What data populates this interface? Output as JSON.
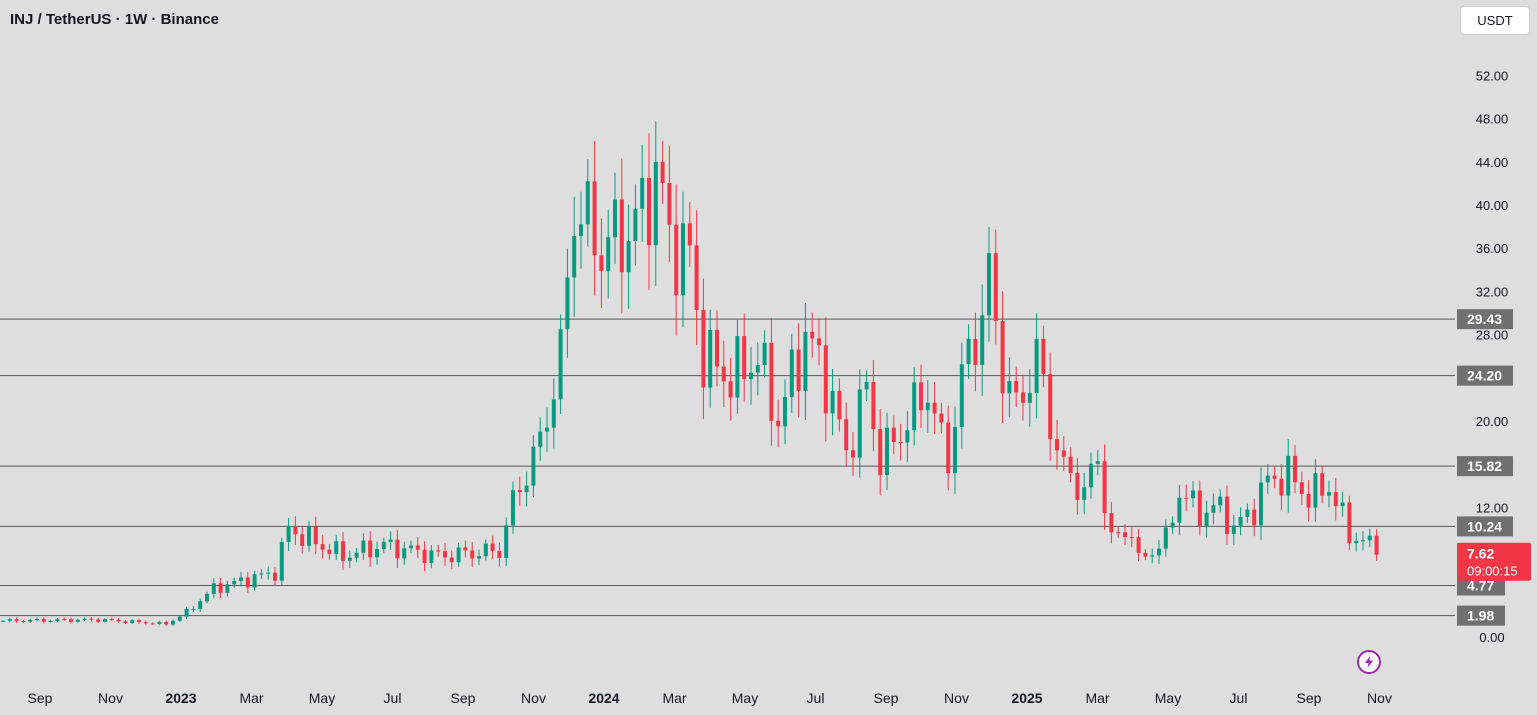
{
  "header": {
    "title": "INJ / TetherUS · 1W · Binance",
    "currency": "USDT"
  },
  "colors": {
    "background": "#dedede",
    "up": "#089981",
    "down": "#f23645",
    "level_label_bg": "#707070",
    "last_price_bg": "#f23645",
    "text": "#131722"
  },
  "icons": {
    "lightning": "lightning-bolt-icon"
  },
  "chart_data": {
    "type": "candlestick",
    "title": "INJ / TetherUS · 1W · Binance",
    "ylim": [
      0,
      54
    ],
    "y_ticks": [
      "52.00",
      "48.00",
      "44.00",
      "40.00",
      "36.00",
      "32.00",
      "28.00",
      "20.00",
      "12.00",
      "0.00"
    ],
    "x_ticks": [
      {
        "label": "Sep",
        "bold": false
      },
      {
        "label": "Nov",
        "bold": false
      },
      {
        "label": "2023",
        "bold": true
      },
      {
        "label": "Mar",
        "bold": false
      },
      {
        "label": "May",
        "bold": false
      },
      {
        "label": "Jul",
        "bold": false
      },
      {
        "label": "Sep",
        "bold": false
      },
      {
        "label": "Nov",
        "bold": false
      },
      {
        "label": "2024",
        "bold": true
      },
      {
        "label": "Mar",
        "bold": false
      },
      {
        "label": "May",
        "bold": false
      },
      {
        "label": "Jul",
        "bold": false
      },
      {
        "label": "Sep",
        "bold": false
      },
      {
        "label": "Nov",
        "bold": false
      },
      {
        "label": "2025",
        "bold": true
      },
      {
        "label": "Mar",
        "bold": false
      },
      {
        "label": "May",
        "bold": false
      },
      {
        "label": "Jul",
        "bold": false
      },
      {
        "label": "Sep",
        "bold": false
      },
      {
        "label": "Nov",
        "bold": false
      }
    ],
    "horizontal_levels": [
      "29.43",
      "24.20",
      "15.82",
      "10.24",
      "4.77",
      "1.98"
    ],
    "last_price": {
      "price": "7.62",
      "countdown": "09:00:15"
    },
    "key_points": [
      [
        0,
        1.5
      ],
      [
        14,
        1.6
      ],
      [
        24,
        1.2
      ],
      [
        27,
        2.3
      ],
      [
        31,
        4.5
      ],
      [
        40,
        6.0
      ],
      [
        42,
        10.0
      ],
      [
        50,
        7.5
      ],
      [
        56,
        8.5
      ],
      [
        64,
        7.5
      ],
      [
        73,
        8.0
      ],
      [
        75,
        12.5
      ],
      [
        79,
        18.0
      ],
      [
        82,
        26.0
      ],
      [
        84,
        40.0
      ],
      [
        88,
        36.0
      ],
      [
        93,
        38.0
      ],
      [
        96,
        43.0
      ],
      [
        98,
        37.0
      ],
      [
        101,
        35.0
      ],
      [
        103,
        26.0
      ],
      [
        107,
        24.0
      ],
      [
        111,
        26.0
      ],
      [
        114,
        20.0
      ],
      [
        118,
        28.0
      ],
      [
        121,
        24.0
      ],
      [
        124,
        17.0
      ],
      [
        127,
        23.0
      ],
      [
        129,
        16.5
      ],
      [
        132,
        19.0
      ],
      [
        136,
        23.0
      ],
      [
        138,
        18.0
      ],
      [
        139,
        16.5
      ],
      [
        141,
        24.0
      ],
      [
        144,
        30.0
      ],
      [
        145,
        33.0
      ],
      [
        147,
        25.0
      ],
      [
        149,
        21.0
      ],
      [
        152,
        26.0
      ],
      [
        154,
        20.0
      ],
      [
        156,
        15.5
      ],
      [
        159,
        13.5
      ],
      [
        161,
        16.5
      ],
      [
        163,
        9.0
      ],
      [
        166,
        10.0
      ],
      [
        167,
        7.0
      ],
      [
        171,
        9.0
      ],
      [
        173,
        13.5
      ],
      [
        176,
        11.5
      ],
      [
        179,
        12.0
      ],
      [
        181,
        10.0
      ],
      [
        184,
        12.0
      ],
      [
        186,
        14.5
      ],
      [
        189,
        15.0
      ],
      [
        192,
        13.0
      ],
      [
        195,
        14.0
      ],
      [
        196,
        12.5
      ],
      [
        198,
        9.5
      ],
      [
        201,
        8.5
      ],
      [
        202,
        7.62
      ]
    ]
  }
}
